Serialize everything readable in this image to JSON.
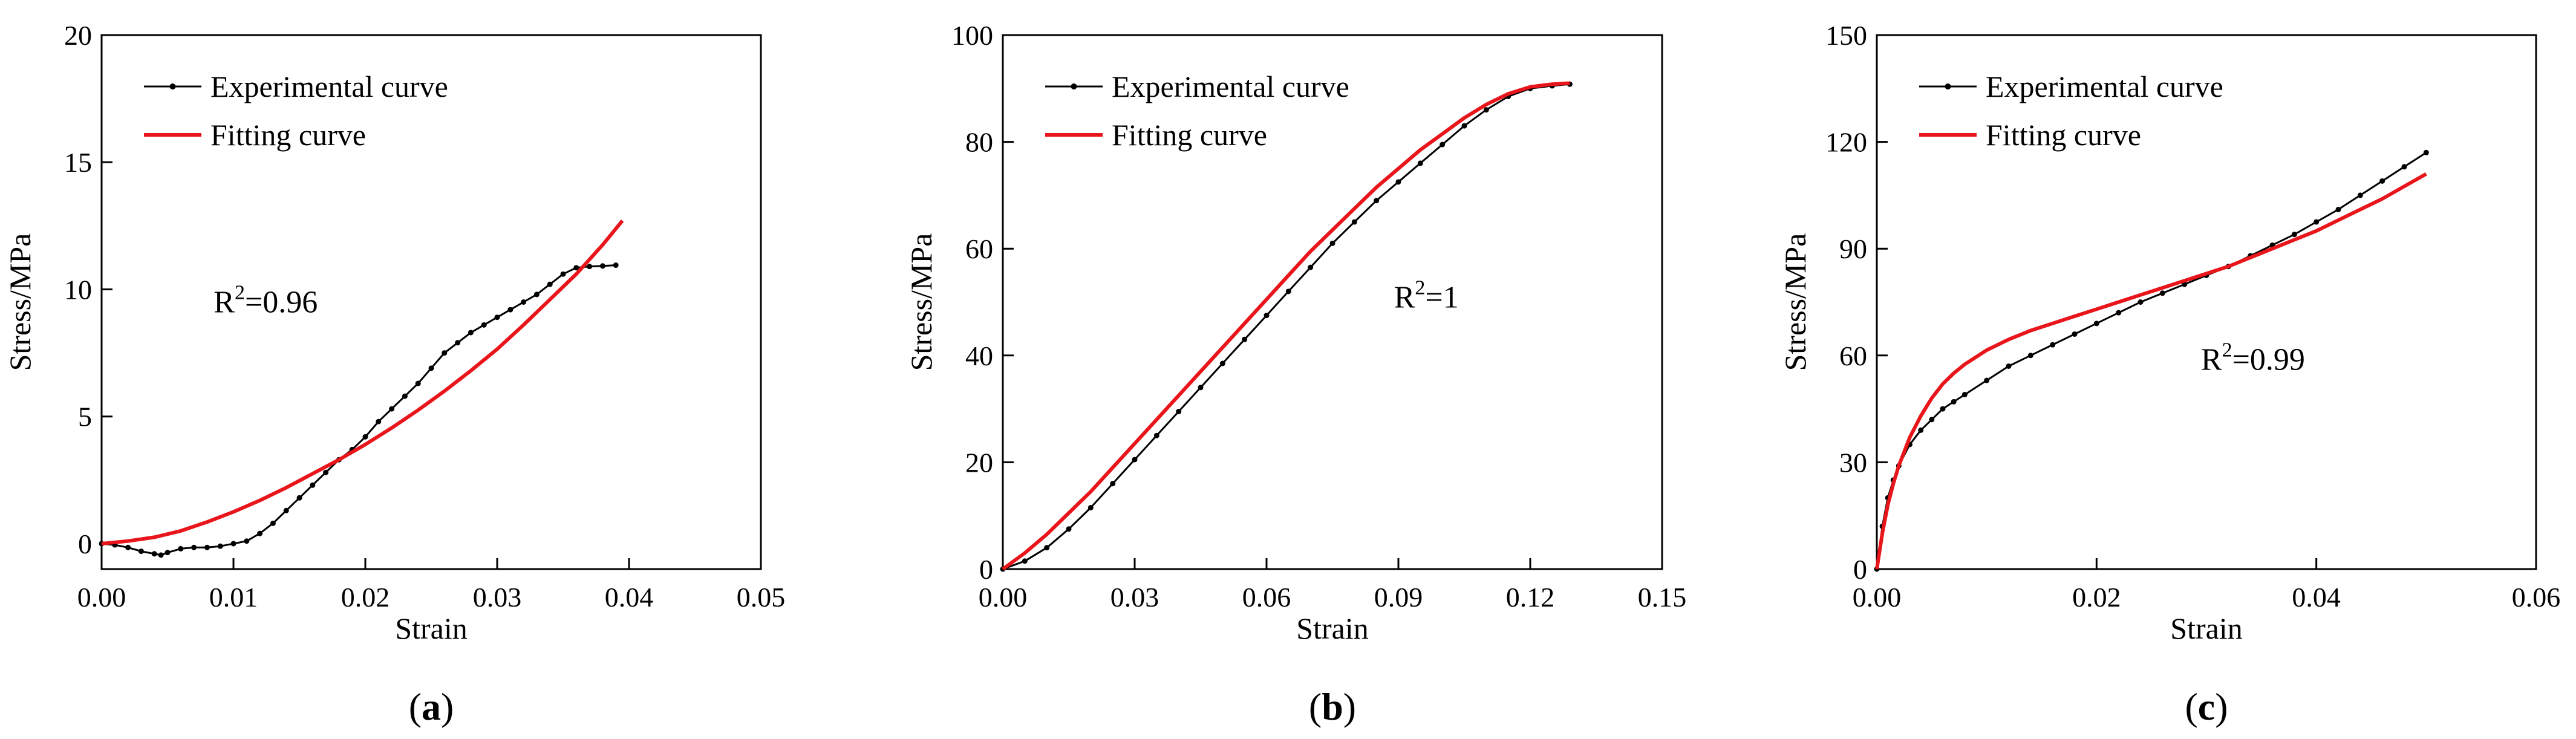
{
  "chart_data": [
    {
      "type": "line",
      "panel_label": "a",
      "xlabel": "Strain",
      "ylabel": "Stress/MPa",
      "xlim": [
        0,
        0.05
      ],
      "ylim": [
        -1,
        20
      ],
      "xticks": [
        0,
        0.01,
        0.02,
        0.03,
        0.04,
        0.05
      ],
      "xtick_labels": [
        "0.00",
        "0.01",
        "0.02",
        "0.03",
        "0.04",
        "0.05"
      ],
      "yticks": [
        0,
        5,
        10,
        15,
        20
      ],
      "ytick_labels": [
        "0",
        "5",
        "10",
        "15",
        "20"
      ],
      "grid": false,
      "legend_position": "top-left",
      "annotation": {
        "base": "R",
        "sup": "2",
        "rest": "=0.96",
        "x": 0.0085,
        "y": 9.1
      },
      "series": [
        {
          "name": "Experimental curve",
          "color": "#000000",
          "marker": true,
          "x": [
            0,
            0.001,
            0.002,
            0.003,
            0.004,
            0.0045,
            0.005,
            0.006,
            0.007,
            0.008,
            0.009,
            0.01,
            0.011,
            0.012,
            0.013,
            0.014,
            0.015,
            0.016,
            0.017,
            0.018,
            0.019,
            0.02,
            0.021,
            0.022,
            0.023,
            0.024,
            0.025,
            0.026,
            0.027,
            0.028,
            0.029,
            0.03,
            0.031,
            0.032,
            0.033,
            0.034,
            0.035,
            0.036,
            0.037,
            0.038,
            0.039
          ],
          "y": [
            0,
            -0.05,
            -0.15,
            -0.3,
            -0.4,
            -0.45,
            -0.35,
            -0.2,
            -0.15,
            -0.15,
            -0.1,
            0,
            0.1,
            0.4,
            0.8,
            1.3,
            1.8,
            2.3,
            2.8,
            3.3,
            3.7,
            4.2,
            4.8,
            5.3,
            5.8,
            6.3,
            6.9,
            7.5,
            7.9,
            8.3,
            8.6,
            8.9,
            9.2,
            9.5,
            9.8,
            10.2,
            10.6,
            10.85,
            10.9,
            10.92,
            10.95
          ]
        },
        {
          "name": "Fitting curve",
          "color": "#e8151b",
          "marker": false,
          "x": [
            0,
            0.002,
            0.004,
            0.006,
            0.008,
            0.01,
            0.012,
            0.014,
            0.016,
            0.018,
            0.02,
            0.022,
            0.024,
            0.026,
            0.028,
            0.03,
            0.032,
            0.034,
            0.036,
            0.038,
            0.0395
          ],
          "y": [
            0,
            0.1,
            0.25,
            0.5,
            0.85,
            1.25,
            1.7,
            2.2,
            2.75,
            3.3,
            3.9,
            4.55,
            5.25,
            6.0,
            6.8,
            7.65,
            8.6,
            9.6,
            10.6,
            11.75,
            12.7
          ]
        }
      ]
    },
    {
      "type": "line",
      "panel_label": "b",
      "xlabel": "Strain",
      "ylabel": "Stress/MPa",
      "xlim": [
        0,
        0.15
      ],
      "ylim": [
        0,
        100
      ],
      "xticks": [
        0,
        0.03,
        0.06,
        0.09,
        0.12,
        0.15
      ],
      "xtick_labels": [
        "0.00",
        "0.03",
        "0.06",
        "0.09",
        "0.12",
        "0.15"
      ],
      "yticks": [
        0,
        20,
        40,
        60,
        80,
        100
      ],
      "ytick_labels": [
        "0",
        "20",
        "40",
        "60",
        "80",
        "100"
      ],
      "grid": false,
      "legend_position": "top-left",
      "annotation": {
        "base": "R",
        "sup": "2",
        "rest": "=1",
        "x": 0.089,
        "y": 49
      },
      "series": [
        {
          "name": "Experimental curve",
          "color": "#000000",
          "marker": true,
          "x": [
            0,
            0.005,
            0.01,
            0.015,
            0.02,
            0.025,
            0.03,
            0.035,
            0.04,
            0.045,
            0.05,
            0.055,
            0.06,
            0.065,
            0.07,
            0.075,
            0.08,
            0.085,
            0.09,
            0.095,
            0.1,
            0.105,
            0.11,
            0.115,
            0.12,
            0.125,
            0.129
          ],
          "y": [
            0,
            1.5,
            4,
            7.5,
            11.5,
            16,
            20.5,
            25,
            29.5,
            34,
            38.5,
            43,
            47.5,
            52,
            56.5,
            61,
            65,
            69,
            72.5,
            76,
            79.5,
            83,
            86,
            88.5,
            90,
            90.5,
            90.8
          ]
        },
        {
          "name": "Fitting curve",
          "color": "#e8151b",
          "marker": false,
          "x": [
            0,
            0.005,
            0.01,
            0.015,
            0.02,
            0.025,
            0.03,
            0.035,
            0.04,
            0.045,
            0.05,
            0.055,
            0.06,
            0.065,
            0.07,
            0.075,
            0.08,
            0.085,
            0.09,
            0.095,
            0.1,
            0.105,
            0.11,
            0.115,
            0.12,
            0.125,
            0.129
          ],
          "y": [
            0,
            3,
            6.5,
            10.5,
            14.5,
            19,
            23.5,
            28,
            32.5,
            37,
            41.5,
            46,
            50.5,
            55,
            59.5,
            63.5,
            67.5,
            71.5,
            75,
            78.5,
            81.5,
            84.5,
            87,
            89,
            90.3,
            90.8,
            91
          ]
        }
      ]
    },
    {
      "type": "line",
      "panel_label": "c",
      "xlabel": "Strain",
      "ylabel": "Stress/MPa",
      "xlim": [
        0,
        0.06
      ],
      "ylim": [
        0,
        150
      ],
      "xticks": [
        0,
        0.02,
        0.04,
        0.06
      ],
      "xtick_labels": [
        "0.00",
        "0.02",
        "0.04",
        "0.06"
      ],
      "yticks": [
        0,
        30,
        60,
        90,
        120,
        150
      ],
      "ytick_labels": [
        "0",
        "30",
        "60",
        "90",
        "120",
        "150"
      ],
      "grid": false,
      "legend_position": "top-left",
      "annotation": {
        "base": "R",
        "sup": "2",
        "rest": "=0.99",
        "x": 0.0295,
        "y": 56
      },
      "series": [
        {
          "name": "Experimental curve",
          "color": "#000000",
          "marker": true,
          "x": [
            0,
            0.0005,
            0.001,
            0.0015,
            0.002,
            0.003,
            0.004,
            0.005,
            0.006,
            0.007,
            0.008,
            0.01,
            0.012,
            0.014,
            0.016,
            0.018,
            0.02,
            0.022,
            0.024,
            0.026,
            0.028,
            0.03,
            0.032,
            0.034,
            0.036,
            0.038,
            0.04,
            0.042,
            0.044,
            0.046,
            0.048,
            0.05
          ],
          "y": [
            0,
            12,
            20,
            25,
            29,
            35,
            39,
            42,
            45,
            47,
            49,
            53,
            57,
            60,
            63,
            66,
            69,
            72,
            75,
            77.5,
            80,
            82.5,
            85,
            88,
            91,
            94,
            97.5,
            101,
            105,
            109,
            113,
            117
          ]
        },
        {
          "name": "Fitting curve",
          "color": "#e8151b",
          "marker": false,
          "x": [
            0,
            0.0005,
            0.001,
            0.0015,
            0.002,
            0.003,
            0.004,
            0.005,
            0.006,
            0.007,
            0.008,
            0.01,
            0.012,
            0.014,
            0.016,
            0.018,
            0.02,
            0.022,
            0.024,
            0.026,
            0.028,
            0.03,
            0.032,
            0.034,
            0.036,
            0.038,
            0.04,
            0.042,
            0.044,
            0.046,
            0.048,
            0.05
          ],
          "y": [
            0,
            10,
            18,
            24,
            29,
            37,
            43,
            48,
            52,
            55,
            57.5,
            61.5,
            64.5,
            67,
            69,
            71,
            73,
            75,
            77,
            79,
            81,
            83,
            85,
            87.5,
            90,
            92.5,
            95,
            98,
            101,
            104,
            107.5,
            111
          ]
        }
      ]
    }
  ]
}
